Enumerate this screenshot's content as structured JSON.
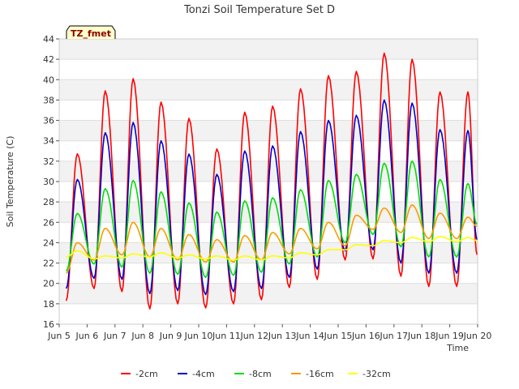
{
  "chart_data": {
    "type": "line",
    "title": "Tonzi Soil Temperature Set D",
    "xlabel": "Time",
    "ylabel": "Soil Temperature (C)",
    "ylim": [
      16,
      44
    ],
    "xlim": [
      "Jun 5",
      "Jun 20"
    ],
    "y_ticks": [
      "16",
      "18",
      "20",
      "22",
      "24",
      "26",
      "28",
      "30",
      "32",
      "34",
      "36",
      "38",
      "40",
      "42",
      "44"
    ],
    "x_ticks": [
      "Jun 5",
      "Jun 6",
      "Jun 7",
      "Jun 8",
      "Jun 9",
      "Jun 10",
      "Jun 11",
      "Jun 12",
      "Jun 13",
      "Jun 14",
      "Jun 15",
      "Jun 16",
      "Jun 17",
      "Jun 18",
      "Jun 19",
      "Jun 20"
    ],
    "grid": "horizontal bands",
    "legend_position": "bottom",
    "tag_label": "TZ_fmet",
    "days": [
      "Jun 5",
      "Jun 6",
      "Jun 7",
      "Jun 8",
      "Jun 9",
      "Jun 10",
      "Jun 11",
      "Jun 12",
      "Jun 13",
      "Jun 14",
      "Jun 15",
      "Jun 16",
      "Jun 17",
      "Jun 18",
      "Jun 19"
    ],
    "series": [
      {
        "name": "-2cm",
        "color": "#ff0000",
        "daily_min": [
          18.3,
          19.5,
          19.2,
          17.5,
          18.0,
          17.6,
          18.0,
          18.4,
          19.6,
          20.4,
          22.3,
          22.4,
          20.7,
          19.7,
          null
        ],
        "daily_max": [
          null,
          38.9,
          40.1,
          37.8,
          36.2,
          33.2,
          36.8,
          37.4,
          39.1,
          40.4,
          40.8,
          42.6,
          42.0,
          38.8,
          38.8
        ],
        "end_value": 22.8
      },
      {
        "name": "-4cm",
        "color": "#0000cc",
        "daily_min": [
          19.5,
          20.5,
          20.4,
          19.0,
          19.3,
          18.9,
          19.2,
          19.5,
          20.6,
          21.4,
          23.2,
          23.3,
          22.0,
          21.0,
          null
        ],
        "daily_max": [
          null,
          34.8,
          35.8,
          34.0,
          32.7,
          30.7,
          33.0,
          33.5,
          34.9,
          36.0,
          36.5,
          38.0,
          37.7,
          35.1,
          35.0
        ],
        "end_value": 24.3
      },
      {
        "name": "-8cm",
        "color": "#00dd00",
        "daily_min": [
          21.2,
          21.9,
          21.6,
          21.0,
          20.9,
          20.6,
          20.8,
          21.1,
          21.9,
          22.6,
          24.0,
          24.8,
          23.6,
          22.6,
          null
        ],
        "daily_max": [
          null,
          29.3,
          30.1,
          29.0,
          27.9,
          27.0,
          28.1,
          28.4,
          29.2,
          30.1,
          30.7,
          31.8,
          32.0,
          30.2,
          29.8
        ],
        "end_value": 25.8
      },
      {
        "name": "-16cm",
        "color": "#ff9900",
        "daily_min": [
          null,
          22.3,
          22.8,
          22.6,
          22.3,
          22.1,
          22.1,
          22.3,
          22.9,
          23.4,
          23.7,
          25.3,
          25.0,
          24.4,
          null
        ],
        "daily_max": [
          24.0,
          25.4,
          26.0,
          25.4,
          24.8,
          24.3,
          24.7,
          25.0,
          25.4,
          26.0,
          26.7,
          27.4,
          27.7,
          26.9,
          26.5
        ],
        "end_value": 25.6
      },
      {
        "name": "-32cm",
        "color": "#ffff00",
        "daily_min": [
          22.6,
          22.4,
          22.5,
          22.6,
          22.5,
          22.4,
          22.3,
          22.3,
          22.5,
          22.8,
          23.3,
          23.7,
          24.0,
          24.1,
          null
        ],
        "daily_max": [
          23.2,
          22.7,
          22.9,
          23.0,
          22.8,
          22.7,
          22.7,
          22.7,
          23.0,
          23.3,
          23.8,
          24.2,
          24.5,
          24.6,
          24.5
        ],
        "end_value": 24.2
      }
    ]
  }
}
